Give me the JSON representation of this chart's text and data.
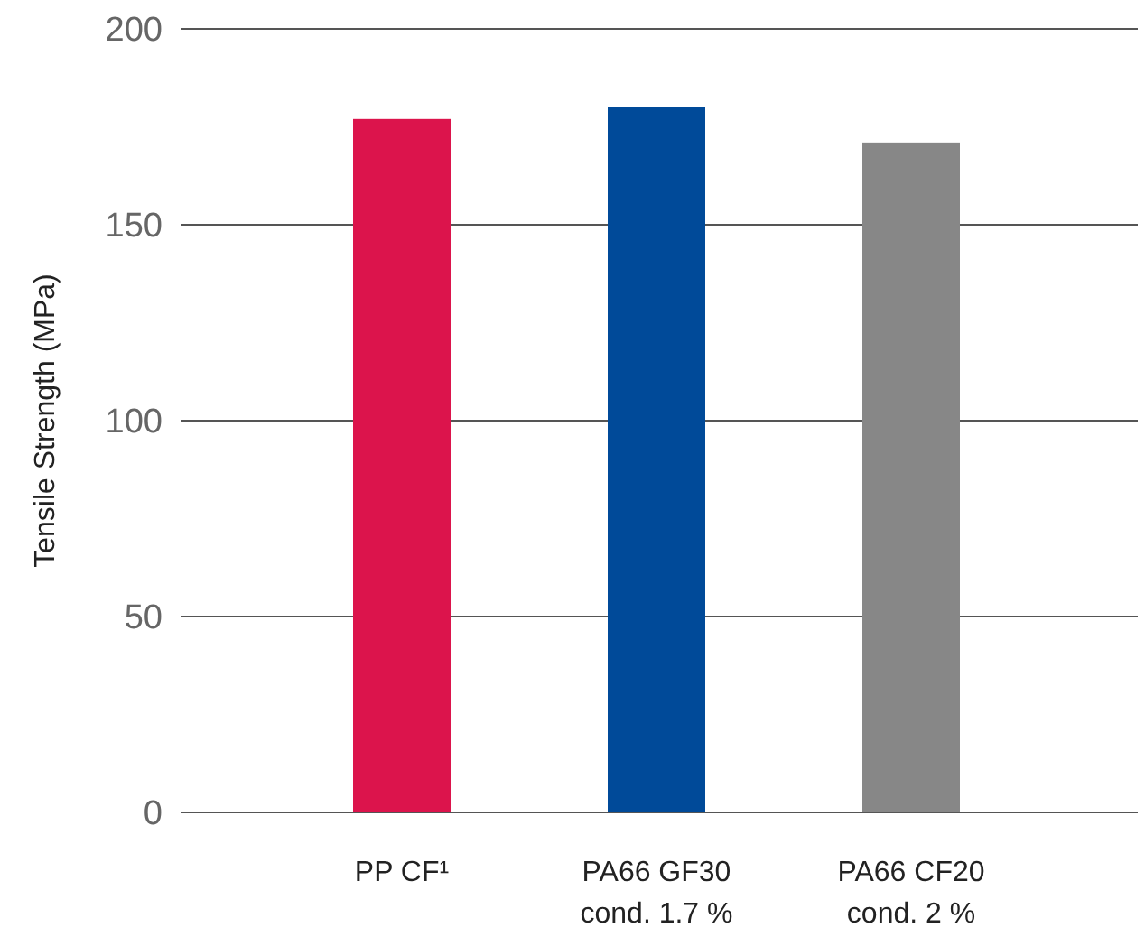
{
  "chart_data": {
    "type": "bar",
    "ylabel": "Tensile Strength (MPa)",
    "categories": [
      "PP CF¹",
      "PA66 GF30\ncond. 1.7 %",
      "PA66 CF20\ncond. 2 %"
    ],
    "values": [
      177,
      180,
      171
    ],
    "colors": [
      "#dc144c",
      "#004a99",
      "#878787"
    ],
    "ylim": [
      0,
      200
    ],
    "yticks": [
      0,
      50,
      100,
      150,
      200
    ],
    "grid": "y"
  }
}
